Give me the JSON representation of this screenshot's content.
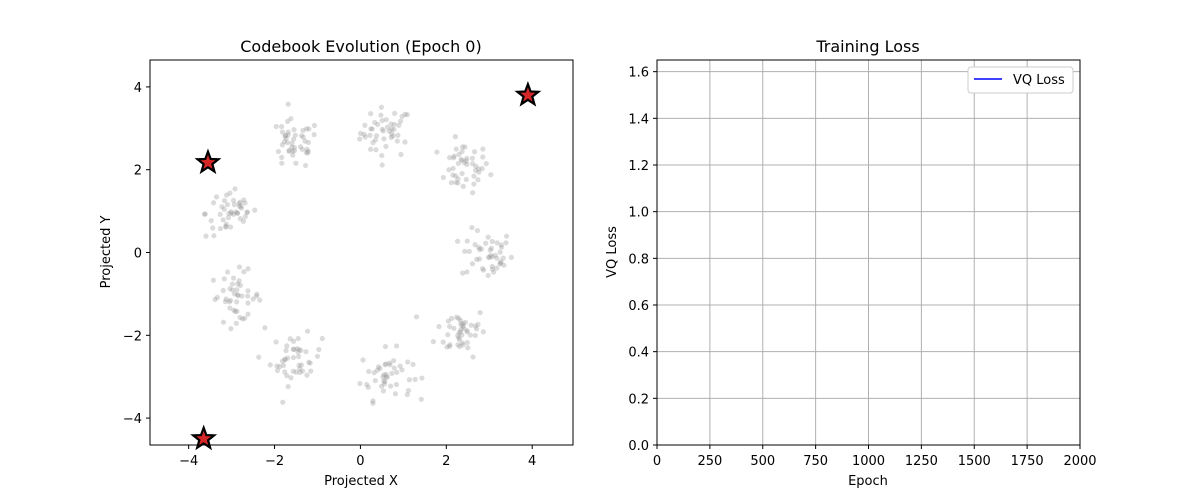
{
  "chart_data": [
    {
      "type": "scatter",
      "title": "Codebook Evolution (Epoch 0)",
      "xlabel": "Projected X",
      "ylabel": "Projected Y",
      "xlim": [
        -4.9,
        4.95
      ],
      "ylim": [
        -4.65,
        4.65
      ],
      "xticks": [
        -4,
        -2,
        0,
        2,
        4
      ],
      "yticks": [
        -4,
        -2,
        0,
        2,
        4
      ],
      "grid": false,
      "cluster_centers": [
        {
          "x": 0.6,
          "y": 2.9
        },
        {
          "x": 2.4,
          "y": 2.05
        },
        {
          "x": 2.95,
          "y": -0.05
        },
        {
          "x": 2.35,
          "y": -1.9
        },
        {
          "x": 0.6,
          "y": -2.95
        },
        {
          "x": -1.5,
          "y": -2.6
        },
        {
          "x": -2.9,
          "y": -1.05
        },
        {
          "x": -3.0,
          "y": 0.95
        },
        {
          "x": -1.55,
          "y": 2.6
        }
      ],
      "points_per_cluster": 45,
      "cluster_spread": 0.3,
      "point_color": "#999999",
      "codebook_vectors": [
        {
          "x": 3.9,
          "y": 3.8
        },
        {
          "x": -3.55,
          "y": 2.17
        },
        {
          "x": -3.65,
          "y": -4.5
        }
      ],
      "codebook_color": "#d62728"
    },
    {
      "type": "line",
      "title": "Training Loss",
      "xlabel": "Epoch",
      "ylabel": "VQ Loss",
      "xlim": [
        0,
        2000
      ],
      "ylim": [
        0,
        1.65
      ],
      "xticks": [
        0,
        250,
        500,
        750,
        1000,
        1250,
        1500,
        1750,
        2000
      ],
      "yticks": [
        "0.0",
        "0.2",
        "0.4",
        "0.6",
        "0.8",
        "1.0",
        "1.2",
        "1.4",
        "1.6"
      ],
      "grid": true,
      "legend_position": "top-right",
      "series": [
        {
          "name": "VQ Loss",
          "color": "#0000ff",
          "x": [],
          "y": []
        }
      ]
    }
  ]
}
